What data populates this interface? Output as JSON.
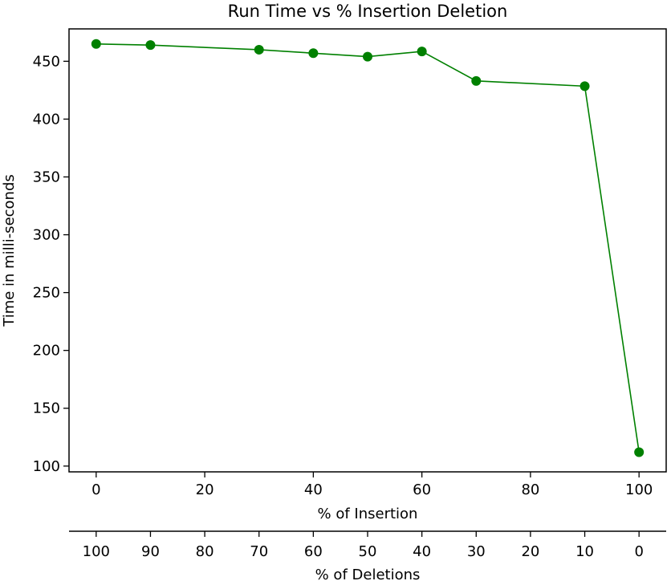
{
  "chart_data": {
    "type": "line",
    "title": "Run Time vs % Insertion Deletion",
    "xlabel": "% of Insertion",
    "x2label": "% of Deletions",
    "ylabel": "Time in milli-seconds",
    "xlim": [
      -5,
      105
    ],
    "ylim": [
      95,
      478
    ],
    "x_ticks": [
      "0",
      "20",
      "40",
      "60",
      "80",
      "100"
    ],
    "x_tick_values": [
      0,
      20,
      40,
      60,
      80,
      100
    ],
    "x2_ticks": [
      "100",
      "90",
      "80",
      "70",
      "60",
      "50",
      "40",
      "30",
      "20",
      "10",
      "0"
    ],
    "x2_tick_values": [
      0,
      10,
      20,
      30,
      40,
      50,
      60,
      70,
      80,
      90,
      100
    ],
    "y_ticks": [
      "100",
      "150",
      "200",
      "250",
      "300",
      "350",
      "400",
      "450"
    ],
    "y_tick_values": [
      100,
      150,
      200,
      250,
      300,
      350,
      400,
      450
    ],
    "grid": false,
    "color": "#008000",
    "series": [
      {
        "x": [
          0,
          10,
          30,
          40,
          50,
          60,
          70,
          90,
          100
        ],
        "values": [
          465,
          464,
          460,
          457,
          454,
          458.5,
          433,
          428.5,
          112
        ]
      }
    ]
  }
}
